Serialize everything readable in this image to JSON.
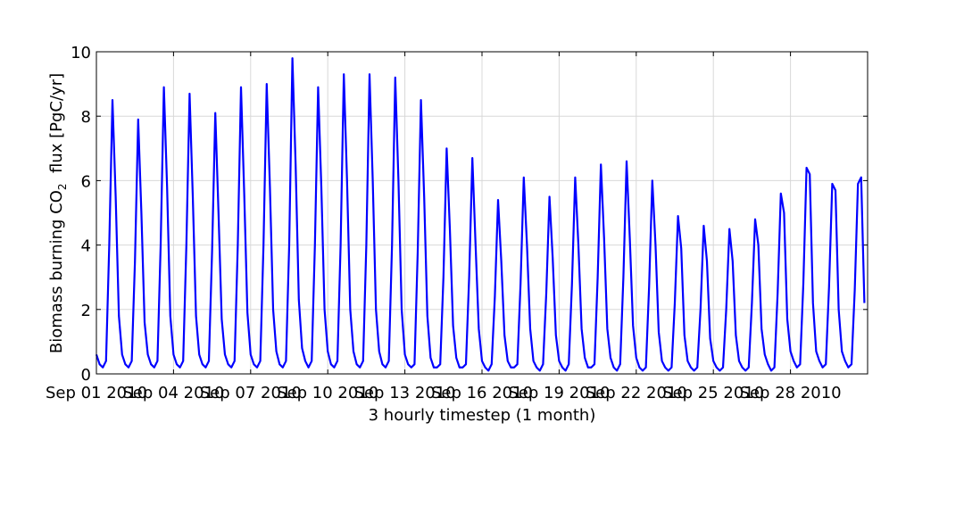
{
  "chart_data": {
    "type": "line",
    "title": "",
    "xlabel": "3 hourly timestep (1 month)",
    "ylabel_parts": {
      "before": "Biomass burning CO",
      "subscript": "2",
      "after": "  flux [PgC/yr]"
    },
    "ylim": [
      0,
      10
    ],
    "yticks": [
      0,
      2,
      4,
      6,
      8,
      10
    ],
    "xlim_steps": [
      0,
      240
    ],
    "x_tick_labels": [
      {
        "label": "Sep 01 2010",
        "step": 0
      },
      {
        "label": "Sep 04 2010",
        "step": 24
      },
      {
        "label": "Sep 07 2010",
        "step": 48
      },
      {
        "label": "Sep 10 2010",
        "step": 72
      },
      {
        "label": "Sep 13 2010",
        "step": 96
      },
      {
        "label": "Sep 16 2010",
        "step": 120
      },
      {
        "label": "Sep 19 2010",
        "step": 144
      },
      {
        "label": "Sep 22 2010",
        "step": 168
      },
      {
        "label": "Sep 25 2010",
        "step": 192
      },
      {
        "label": "Sep 28 2010",
        "step": 216
      }
    ],
    "grid": true,
    "line_color": "#0000ff",
    "series": [
      {
        "name": "",
        "values": [
          0.6,
          0.3,
          0.2,
          0.4,
          4.0,
          8.5,
          5.5,
          1.8,
          0.6,
          0.3,
          0.2,
          0.4,
          3.5,
          7.9,
          5.0,
          1.6,
          0.6,
          0.3,
          0.2,
          0.4,
          4.0,
          8.9,
          5.8,
          1.8,
          0.6,
          0.3,
          0.2,
          0.4,
          4.0,
          8.7,
          5.5,
          1.8,
          0.6,
          0.3,
          0.2,
          0.4,
          3.8,
          8.1,
          5.0,
          1.7,
          0.6,
          0.3,
          0.2,
          0.4,
          4.0,
          8.9,
          5.6,
          1.9,
          0.6,
          0.3,
          0.2,
          0.4,
          4.0,
          9.0,
          5.8,
          2.0,
          0.7,
          0.3,
          0.2,
          0.4,
          4.0,
          9.8,
          6.5,
          2.3,
          0.8,
          0.4,
          0.2,
          0.4,
          4.0,
          8.9,
          5.8,
          2.0,
          0.7,
          0.3,
          0.2,
          0.4,
          4.0,
          9.3,
          6.0,
          2.0,
          0.7,
          0.3,
          0.2,
          0.4,
          4.0,
          9.3,
          6.0,
          2.0,
          0.7,
          0.3,
          0.2,
          0.4,
          4.0,
          9.2,
          6.0,
          2.0,
          0.6,
          0.3,
          0.2,
          0.3,
          3.8,
          8.5,
          5.5,
          1.8,
          0.5,
          0.2,
          0.2,
          0.3,
          3.0,
          7.0,
          4.5,
          1.5,
          0.5,
          0.2,
          0.2,
          0.3,
          3.0,
          6.7,
          4.0,
          1.4,
          0.4,
          0.2,
          0.1,
          0.3,
          2.4,
          5.4,
          3.5,
          1.2,
          0.4,
          0.2,
          0.2,
          0.3,
          2.8,
          6.1,
          4.0,
          1.4,
          0.4,
          0.2,
          0.1,
          0.3,
          2.5,
          5.5,
          3.6,
          1.2,
          0.4,
          0.2,
          0.1,
          0.3,
          2.8,
          6.1,
          4.0,
          1.4,
          0.5,
          0.2,
          0.2,
          0.3,
          3.0,
          6.5,
          4.2,
          1.4,
          0.5,
          0.2,
          0.1,
          0.3,
          3.0,
          6.6,
          4.2,
          1.5,
          0.5,
          0.2,
          0.1,
          0.2,
          2.7,
          6.0,
          4.0,
          1.3,
          0.4,
          0.2,
          0.1,
          0.2,
          2.2,
          4.9,
          3.9,
          1.2,
          0.4,
          0.2,
          0.1,
          0.2,
          2.0,
          4.6,
          3.5,
          1.1,
          0.4,
          0.2,
          0.1,
          0.2,
          2.0,
          4.5,
          3.5,
          1.2,
          0.4,
          0.2,
          0.1,
          0.2,
          2.2,
          4.8,
          4.0,
          1.4,
          0.6,
          0.3,
          0.1,
          0.2,
          2.5,
          5.6,
          5.0,
          1.7,
          0.7,
          0.4,
          0.2,
          0.3,
          2.8,
          6.4,
          6.2,
          2.2,
          0.7,
          0.4,
          0.2,
          0.3,
          2.7,
          5.9,
          5.7,
          2.0,
          0.7,
          0.4,
          0.2,
          0.3,
          2.6,
          5.9,
          6.1,
          2.2
        ]
      }
    ]
  }
}
